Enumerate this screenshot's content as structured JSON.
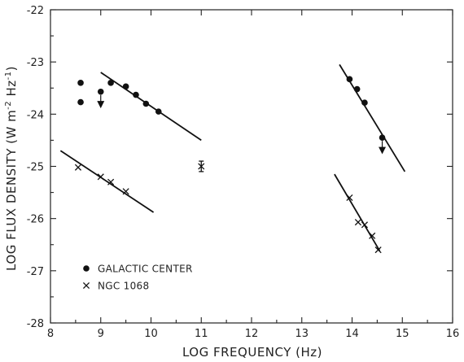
{
  "chart_data": {
    "type": "scatter",
    "title": "",
    "xlabel": "LOG FREQUENCY (Hz)",
    "ylabel": "LOG FLUX DENSITY (W m",
    "ylabel_sup1": "-2",
    "ylabel_mid": " Hz",
    "ylabel_sup2": "-1",
    "ylabel_end": ")",
    "xlim": [
      8,
      16
    ],
    "ylim": [
      -28,
      -22
    ],
    "xticks": [
      8,
      9,
      10,
      11,
      12,
      13,
      14,
      15,
      16
    ],
    "yticks": [
      -22,
      -23,
      -24,
      -25,
      -26,
      -27,
      -28
    ],
    "xtick_labels": [
      "8",
      "9",
      "10",
      "11",
      "12",
      "13",
      "14",
      "15",
      "16"
    ],
    "ytick_labels": [
      "-22",
      "-23",
      "-24",
      "-25",
      "-26",
      "-27",
      "-28"
    ],
    "legend_position": "bottom-left",
    "series": [
      {
        "name": "GALACTIC CENTER",
        "marker": "filled-circle",
        "points": [
          {
            "x": 8.6,
            "y": -23.4
          },
          {
            "x": 8.6,
            "y": -23.77
          },
          {
            "x": 9.0,
            "y": -23.57
          },
          {
            "x": 9.2,
            "y": -23.4
          },
          {
            "x": 9.5,
            "y": -23.47
          },
          {
            "x": 9.7,
            "y": -23.63
          },
          {
            "x": 9.9,
            "y": -23.8
          },
          {
            "x": 10.15,
            "y": -23.95
          },
          {
            "x": 13.95,
            "y": -23.33
          },
          {
            "x": 14.1,
            "y": -23.52
          },
          {
            "x": 14.25,
            "y": -23.78
          },
          {
            "x": 14.6,
            "y": -24.45
          }
        ],
        "upper_limits": [
          {
            "x": 9.0,
            "y": -23.57
          },
          {
            "x": 14.6,
            "y": -24.45
          }
        ],
        "fit_lines": [
          {
            "x": [
              9.0,
              11.0
            ],
            "y": [
              -23.2,
              -24.5
            ]
          },
          {
            "x": [
              13.75,
              15.05
            ],
            "y": [
              -23.05,
              -25.1
            ]
          }
        ]
      },
      {
        "name": "NGC 1068",
        "marker": "cross",
        "points": [
          {
            "x": 8.55,
            "y": -25.02
          },
          {
            "x": 9.0,
            "y": -25.2
          },
          {
            "x": 9.2,
            "y": -25.3
          },
          {
            "x": 9.5,
            "y": -25.48
          },
          {
            "x": 11.0,
            "y": -25.0
          },
          {
            "x": 13.95,
            "y": -25.6
          },
          {
            "x": 14.12,
            "y": -26.07
          },
          {
            "x": 14.25,
            "y": -26.12
          },
          {
            "x": 14.4,
            "y": -26.33
          },
          {
            "x": 14.52,
            "y": -26.6
          }
        ],
        "error_bars": [
          {
            "x": 11.0,
            "low": -25.1,
            "high": -24.9
          }
        ],
        "fit_lines": [
          {
            "x": [
              8.2,
              10.05
            ],
            "y": [
              -24.7,
              -25.88
            ]
          },
          {
            "x": [
              13.65,
              14.55
            ],
            "y": [
              -25.15,
              -26.62
            ]
          }
        ]
      }
    ]
  }
}
